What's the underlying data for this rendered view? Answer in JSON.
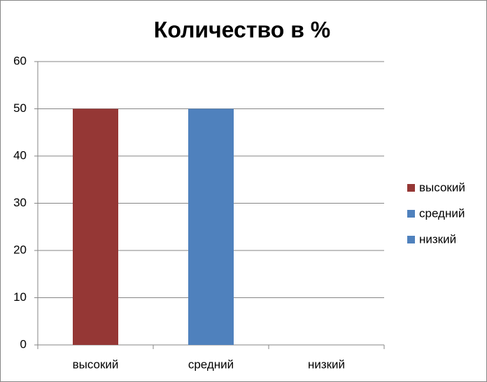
{
  "chart_data": {
    "type": "bar",
    "title": "Количество в %",
    "categories": [
      "высокий",
      "средний",
      "низкий"
    ],
    "values": [
      50,
      50,
      0
    ],
    "colors": [
      "#953735",
      "#4f81bd",
      "#4f81bd"
    ],
    "ylim": [
      0,
      60
    ],
    "yticks": [
      0,
      10,
      20,
      30,
      40,
      50,
      60
    ],
    "grid": true,
    "legend": "right"
  }
}
